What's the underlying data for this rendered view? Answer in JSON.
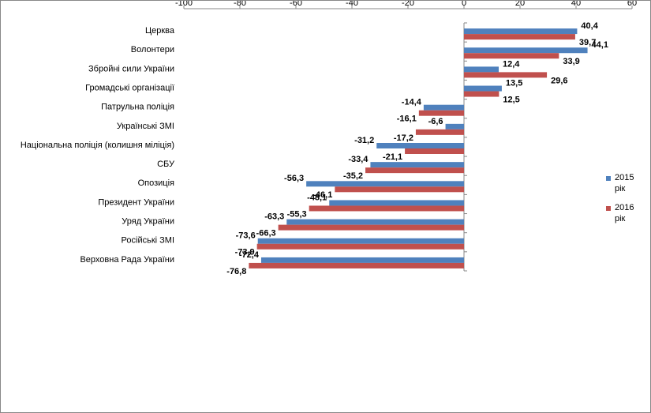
{
  "chart_data": {
    "type": "bar",
    "orientation": "horizontal",
    "categories": [
      "Церква",
      "Волонтери",
      "Збройні сили України",
      "Громадські організації",
      "Патрульна поліція",
      "Українські ЗМІ",
      "Національна поліція (колишня міліція)",
      "СБУ",
      "Опозиція",
      "Президент  України",
      "Уряд України",
      "Російські ЗМІ",
      "Верховна  Рада України"
    ],
    "series": [
      {
        "name": "2015 рік",
        "color": "#4f81bd",
        "values": [
          40.4,
          44.1,
          12.4,
          13.5,
          -14.4,
          -6.6,
          -31.2,
          -33.4,
          -56.3,
          -48.1,
          -63.3,
          -73.6,
          -72.4
        ],
        "value_labels": [
          "40,4",
          "44,1",
          "12,4",
          "13,5",
          "-14,4",
          "-6,6",
          "-31,2",
          "-33,4",
          "-56,3",
          "-48,1",
          "-63,3",
          "-73,6",
          "-72,4"
        ]
      },
      {
        "name": "2016 рік",
        "color": "#c0504d",
        "values": [
          39.7,
          33.9,
          29.6,
          12.5,
          -16.1,
          -17.2,
          -21.1,
          -35.2,
          -46.1,
          -55.3,
          -66.3,
          -73.9,
          -76.8
        ],
        "value_labels": [
          "39,7",
          "33,9",
          "29,6",
          "12,5",
          "-16,1",
          "-17,2",
          "-21,1",
          "-35,2",
          "-46,1",
          "-55,3",
          "-66,3",
          "-73,9",
          "-76,8"
        ]
      }
    ],
    "xlim": [
      -100,
      60
    ],
    "xticks": [
      -100,
      -80,
      -60,
      -40,
      -20,
      0,
      20,
      40,
      60
    ],
    "legend": "right"
  }
}
